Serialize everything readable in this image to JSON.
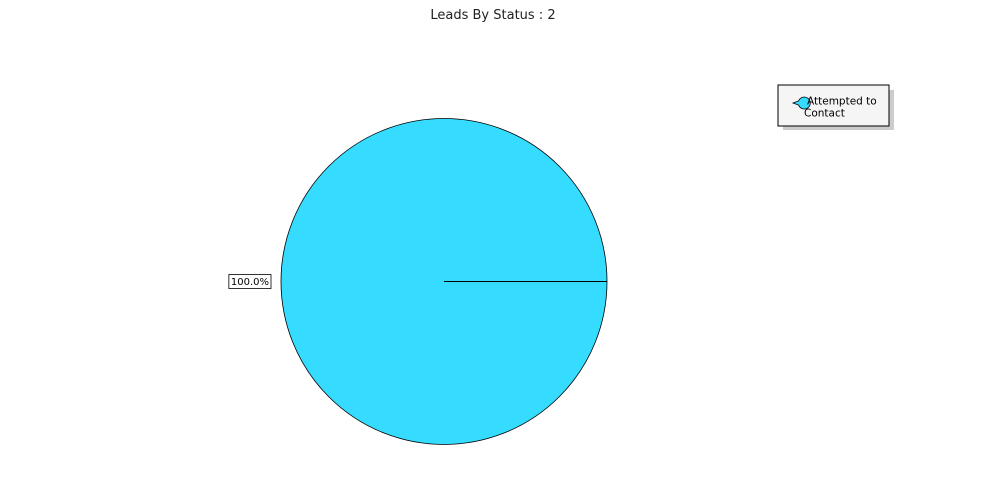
{
  "chart_data": {
    "type": "pie",
    "title": "Leads By Status : 2",
    "slices": [
      {
        "label": "Attempted to Contact",
        "legend_lines": [
          "Attempted to",
          "Contact"
        ],
        "value": 2,
        "percent_label": "100.0%",
        "color": "#35dcff"
      }
    ],
    "legend": {
      "placement": "top-right",
      "shadow_color": "#cccccc",
      "background_color": "#f5f5f5"
    }
  }
}
